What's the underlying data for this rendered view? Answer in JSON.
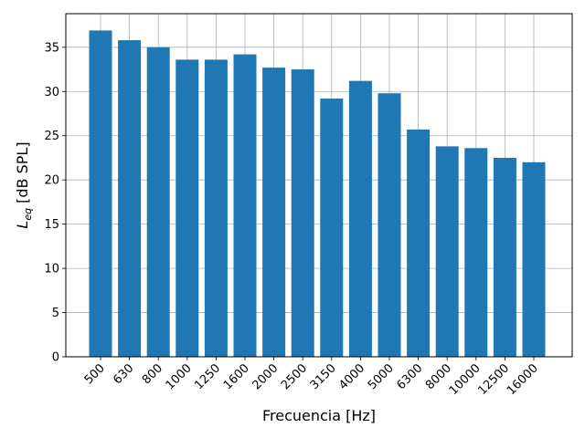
{
  "chart_data": {
    "type": "bar",
    "categories": [
      "500",
      "630",
      "800",
      "1000",
      "1250",
      "1600",
      "2000",
      "2500",
      "3150",
      "4000",
      "5000",
      "6300",
      "8000",
      "10000",
      "12500",
      "16000"
    ],
    "values": [
      36.9,
      35.8,
      35.0,
      33.6,
      33.6,
      34.2,
      32.7,
      32.5,
      29.2,
      31.2,
      29.8,
      25.7,
      23.8,
      23.6,
      22.5,
      22.0
    ],
    "xlabel": "Frecuencia [Hz]",
    "ylabel_main": "L",
    "ylabel_sub": "eq",
    "ylabel_units": " [dB SPL]",
    "ylim": [
      0,
      38.8
    ],
    "yticks": [
      0,
      5,
      10,
      15,
      20,
      25,
      30,
      35
    ],
    "grid": true,
    "bar_color": "#1f77b4"
  }
}
